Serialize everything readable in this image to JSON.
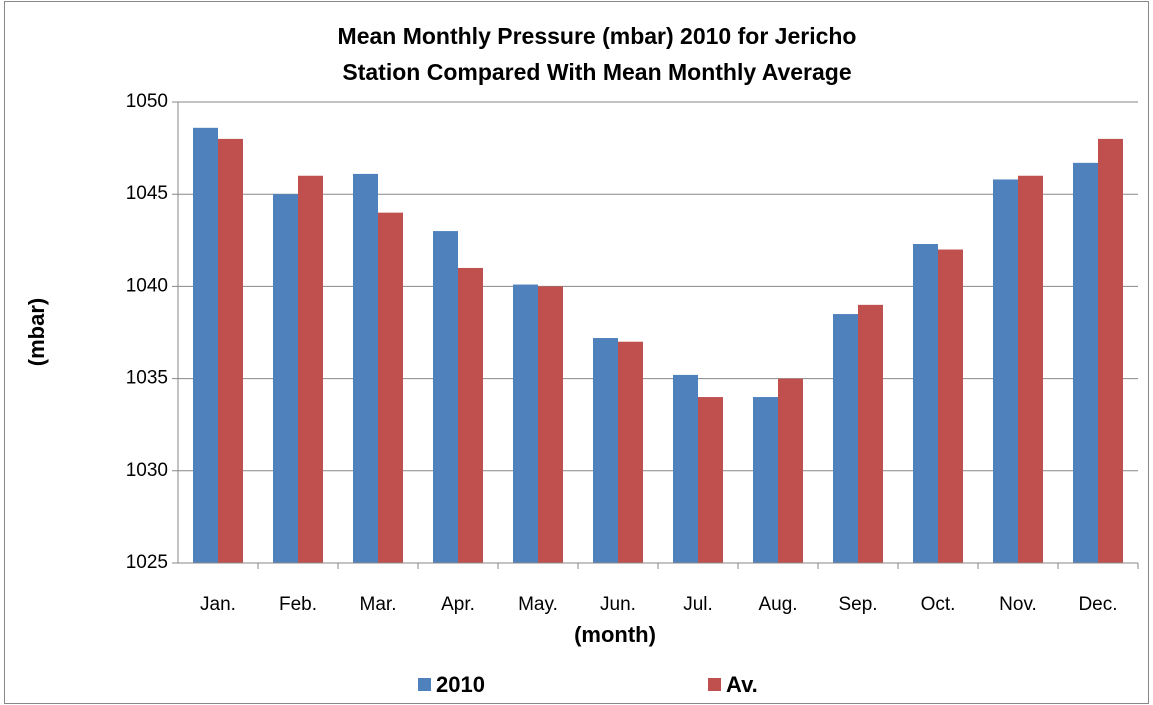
{
  "chart_data": {
    "type": "bar",
    "title": [
      "Mean Monthly Pressure (mbar) 2010 for Jericho",
      "Station Compared With Mean Monthly Average"
    ],
    "x_label": "(month)",
    "y_label": "(mbar)",
    "categories": [
      "Jan.",
      "Feb.",
      "Mar.",
      "Apr.",
      "May.",
      "Jun.",
      "Jul.",
      "Aug.",
      "Sep.",
      "Oct.",
      "Nov.",
      "Dec."
    ],
    "series": [
      {
        "name": "2010",
        "color": "#4f81bd",
        "values": [
          1048.6,
          1045,
          1046.1,
          1043,
          1040.1,
          1037.2,
          1035.2,
          1034,
          1038.5,
          1042.3,
          1045.8,
          1046.7
        ]
      },
      {
        "name": "Av.",
        "color": "#c0504d",
        "values": [
          1048,
          1046,
          1044,
          1041,
          1040,
          1037,
          1034,
          1035,
          1039,
          1042,
          1046,
          1048
        ]
      }
    ],
    "ylim": [
      1025,
      1050
    ],
    "yticks": [
      1025,
      1030,
      1035,
      1040,
      1045,
      1050
    ],
    "grid": true,
    "legend": "bottom"
  }
}
